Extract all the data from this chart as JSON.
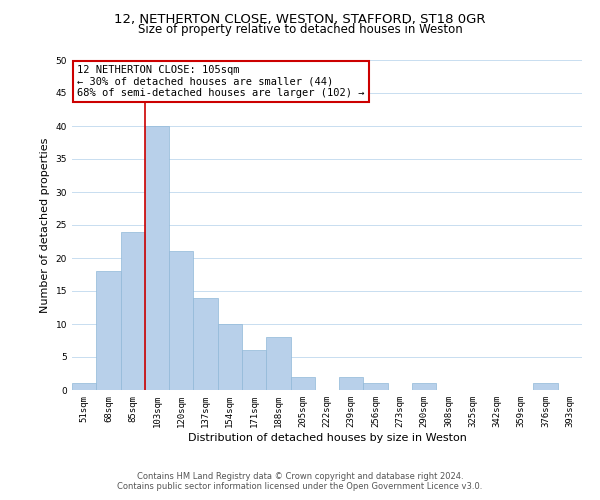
{
  "title_line1": "12, NETHERTON CLOSE, WESTON, STAFFORD, ST18 0GR",
  "title_line2": "Size of property relative to detached houses in Weston",
  "xlabel": "Distribution of detached houses by size in Weston",
  "ylabel": "Number of detached properties",
  "bar_labels": [
    "51sqm",
    "68sqm",
    "85sqm",
    "103sqm",
    "120sqm",
    "137sqm",
    "154sqm",
    "171sqm",
    "188sqm",
    "205sqm",
    "222sqm",
    "239sqm",
    "256sqm",
    "273sqm",
    "290sqm",
    "308sqm",
    "325sqm",
    "342sqm",
    "359sqm",
    "376sqm",
    "393sqm"
  ],
  "bar_values": [
    1,
    18,
    24,
    40,
    21,
    14,
    10,
    6,
    8,
    2,
    0,
    2,
    1,
    0,
    1,
    0,
    0,
    0,
    0,
    1,
    0
  ],
  "bar_color": "#b8d0ea",
  "bar_edge_color": "#90b8d8",
  "vline_color": "#cc0000",
  "vline_index": 3,
  "ylim": [
    0,
    50
  ],
  "yticks": [
    0,
    5,
    10,
    15,
    20,
    25,
    30,
    35,
    40,
    45,
    50
  ],
  "annotation_text": "12 NETHERTON CLOSE: 105sqm\n← 30% of detached houses are smaller (44)\n68% of semi-detached houses are larger (102) →",
  "annotation_box_color": "#ffffff",
  "annotation_border_color": "#cc0000",
  "footer_line1": "Contains HM Land Registry data © Crown copyright and database right 2024.",
  "footer_line2": "Contains public sector information licensed under the Open Government Licence v3.0.",
  "bg_color": "#ffffff",
  "grid_color": "#c8ddf0",
  "title_fontsize": 9.5,
  "subtitle_fontsize": 8.5,
  "axis_label_fontsize": 8,
  "tick_fontsize": 6.5,
  "annotation_fontsize": 7.5,
  "footer_fontsize": 6
}
